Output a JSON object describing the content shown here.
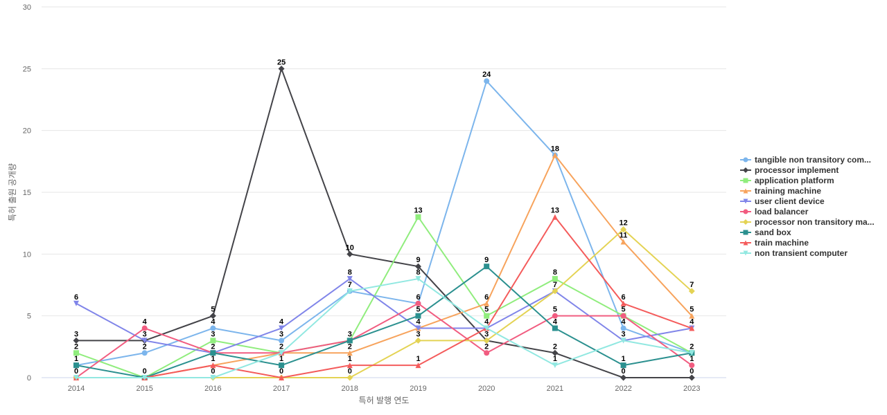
{
  "chart_data": {
    "type": "line",
    "title": "",
    "xlabel": "특허 발행 연도",
    "ylabel": "특허 출원 공개량",
    "ylim": [
      0,
      30
    ],
    "yticks": [
      0,
      5,
      10,
      15,
      20,
      25,
      30
    ],
    "grid": true,
    "legend_position": "right",
    "x": [
      "2014",
      "2015",
      "2016",
      "2017",
      "2018",
      "2019",
      "2020",
      "2021",
      "2022",
      "2023"
    ],
    "series": [
      {
        "name": "tangible non transitory com...",
        "color": "#7cb5ec",
        "marker": "circle",
        "values": [
          1,
          2,
          4,
          3,
          7,
          6,
          24,
          18,
          4,
          2
        ]
      },
      {
        "name": "processor implement",
        "color": "#434348",
        "marker": "diamond",
        "values": [
          3,
          3,
          5,
          25,
          10,
          9,
          3,
          2,
          0,
          0
        ]
      },
      {
        "name": "application platform",
        "color": "#90ed7d",
        "marker": "square",
        "values": [
          2,
          0,
          3,
          2,
          3,
          13,
          5,
          8,
          5,
          2
        ]
      },
      {
        "name": "training machine",
        "color": "#f7a35c",
        "marker": "triangle",
        "values": [
          0,
          0,
          1,
          2,
          2,
          4,
          6,
          18,
          11,
          5
        ]
      },
      {
        "name": "user client device",
        "color": "#8085e9",
        "marker": "triangle-down",
        "values": [
          6,
          3,
          2,
          4,
          8,
          4,
          4,
          7,
          3,
          4
        ]
      },
      {
        "name": "load balancer",
        "color": "#f15c80",
        "marker": "circle",
        "values": [
          0,
          4,
          2,
          2,
          3,
          6,
          2,
          5,
          5,
          1
        ]
      },
      {
        "name": "processor non transitory ma...",
        "color": "#e4d354",
        "marker": "diamond",
        "values": [
          0,
          0,
          0,
          0,
          0,
          3,
          3,
          7,
          12,
          7
        ]
      },
      {
        "name": "sand box",
        "color": "#2b908f",
        "marker": "square",
        "values": [
          1,
          0,
          2,
          1,
          3,
          5,
          9,
          4,
          1,
          2
        ]
      },
      {
        "name": "train machine",
        "color": "#f45b5b",
        "marker": "triangle",
        "values": [
          0,
          0,
          1,
          0,
          1,
          1,
          4,
          13,
          6,
          4
        ]
      },
      {
        "name": "non transient computer",
        "color": "#91e8e1",
        "marker": "triangle-down",
        "values": [
          0,
          0,
          0,
          2,
          7,
          8,
          4,
          1,
          3,
          2
        ]
      }
    ],
    "data_labels": [
      {
        "x": "2014",
        "text": "6",
        "value": 6
      },
      {
        "x": "2014",
        "text": "3",
        "value": 3
      },
      {
        "x": "2014",
        "text": "2",
        "value": 2
      },
      {
        "x": "2014",
        "text": "1",
        "value": 1
      },
      {
        "x": "2014",
        "text": "0",
        "value": 0
      },
      {
        "x": "2015",
        "text": "4",
        "value": 4
      },
      {
        "x": "2015",
        "text": "3",
        "value": 3
      },
      {
        "x": "2015",
        "text": "2",
        "value": 2
      },
      {
        "x": "2015",
        "text": "0",
        "value": 0
      },
      {
        "x": "2016",
        "text": "5",
        "value": 5
      },
      {
        "x": "2016",
        "text": "4",
        "value": 4
      },
      {
        "x": "2016",
        "text": "3",
        "value": 3
      },
      {
        "x": "2016",
        "text": "2",
        "value": 2
      },
      {
        "x": "2016",
        "text": "1",
        "value": 1
      },
      {
        "x": "2016",
        "text": "0",
        "value": 0
      },
      {
        "x": "2017",
        "text": "25",
        "value": 25
      },
      {
        "x": "2017",
        "text": "4",
        "value": 4
      },
      {
        "x": "2017",
        "text": "3",
        "value": 3
      },
      {
        "x": "2017",
        "text": "2",
        "value": 2
      },
      {
        "x": "2017",
        "text": "1",
        "value": 1
      },
      {
        "x": "2017",
        "text": "0",
        "value": 0
      },
      {
        "x": "2018",
        "text": "10",
        "value": 10
      },
      {
        "x": "2018",
        "text": "8",
        "value": 8
      },
      {
        "x": "2018",
        "text": "7",
        "value": 7
      },
      {
        "x": "2018",
        "text": "3",
        "value": 3
      },
      {
        "x": "2018",
        "text": "2",
        "value": 2
      },
      {
        "x": "2018",
        "text": "1",
        "value": 1
      },
      {
        "x": "2018",
        "text": "0",
        "value": 0
      },
      {
        "x": "2019",
        "text": "13",
        "value": 13
      },
      {
        "x": "2019",
        "text": "9",
        "value": 9
      },
      {
        "x": "2019",
        "text": "8",
        "value": 8
      },
      {
        "x": "2019",
        "text": "6",
        "value": 6
      },
      {
        "x": "2019",
        "text": "5",
        "value": 5
      },
      {
        "x": "2019",
        "text": "4",
        "value": 4
      },
      {
        "x": "2019",
        "text": "3",
        "value": 3
      },
      {
        "x": "2019",
        "text": "1",
        "value": 1
      },
      {
        "x": "2020",
        "text": "24",
        "value": 24
      },
      {
        "x": "2020",
        "text": "9",
        "value": 9
      },
      {
        "x": "2020",
        "text": "6",
        "value": 6
      },
      {
        "x": "2020",
        "text": "5",
        "value": 5
      },
      {
        "x": "2020",
        "text": "4",
        "value": 4
      },
      {
        "x": "2020",
        "text": "3",
        "value": 3
      },
      {
        "x": "2020",
        "text": "2",
        "value": 2
      },
      {
        "x": "2021",
        "text": "18",
        "value": 18
      },
      {
        "x": "2021",
        "text": "13",
        "value": 13
      },
      {
        "x": "2021",
        "text": "8",
        "value": 8
      },
      {
        "x": "2021",
        "text": "7",
        "value": 7
      },
      {
        "x": "2021",
        "text": "5",
        "value": 5
      },
      {
        "x": "2021",
        "text": "4",
        "value": 4
      },
      {
        "x": "2021",
        "text": "2",
        "value": 2
      },
      {
        "x": "2021",
        "text": "1",
        "value": 1
      },
      {
        "x": "2022",
        "text": "12",
        "value": 12
      },
      {
        "x": "2022",
        "text": "11",
        "value": 11
      },
      {
        "x": "2022",
        "text": "6",
        "value": 6
      },
      {
        "x": "2022",
        "text": "5",
        "value": 5
      },
      {
        "x": "2022",
        "text": "4",
        "value": 4
      },
      {
        "x": "2022",
        "text": "3",
        "value": 3
      },
      {
        "x": "2022",
        "text": "1",
        "value": 1
      },
      {
        "x": "2022",
        "text": "0",
        "value": 0
      },
      {
        "x": "2023",
        "text": "7",
        "value": 7
      },
      {
        "x": "2023",
        "text": "5",
        "value": 5
      },
      {
        "x": "2023",
        "text": "4",
        "value": 4
      },
      {
        "x": "2023",
        "text": "2",
        "value": 2
      },
      {
        "x": "2023",
        "text": "1",
        "value": 1
      },
      {
        "x": "2023",
        "text": "0",
        "value": 0
      }
    ]
  }
}
